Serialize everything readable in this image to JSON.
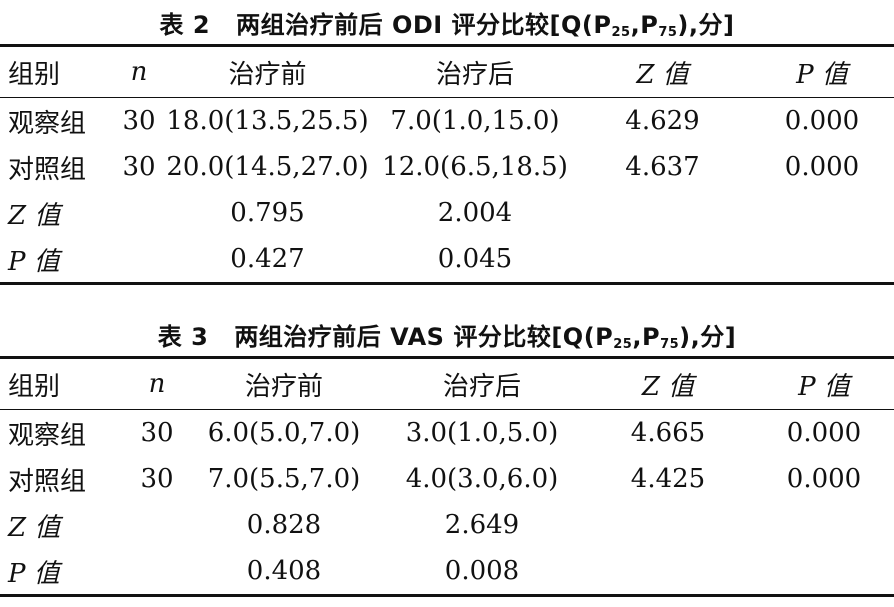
{
  "tables": [
    {
      "caption_no": "表 2",
      "caption_main": "两组治疗前后 ODI 评分比较[Q(P",
      "caption_sub1": "25",
      "caption_mid": ",P",
      "caption_sub2": "75",
      "caption_end": "),分]",
      "headers": {
        "group": "组别",
        "n": "n",
        "before": "治疗前",
        "after": "治疗后",
        "z": "Z 值",
        "p": "P 值"
      },
      "rows": [
        {
          "group": "观察组",
          "n": "30",
          "before": "18.0(13.5,25.5)",
          "after": "7.0(1.0,15.0)",
          "z": "4.629",
          "p": "0.000"
        },
        {
          "group": "对照组",
          "n": "30",
          "before": "20.0(14.5,27.0)",
          "after": "12.0(6.5,18.5)",
          "z": "4.637",
          "p": "0.000"
        },
        {
          "group": "Z 值",
          "n": "",
          "before": "0.795",
          "after": "2.004",
          "z": "",
          "p": ""
        },
        {
          "group": "P 值",
          "n": "",
          "before": "0.427",
          "after": "0.045",
          "z": "",
          "p": ""
        }
      ]
    },
    {
      "caption_no": "表 3",
      "caption_main": "两组治疗前后 VAS 评分比较[Q(P",
      "caption_sub1": "25",
      "caption_mid": ",P",
      "caption_sub2": "75",
      "caption_end": "),分]",
      "headers": {
        "group": "组别",
        "n": "n",
        "before": "治疗前",
        "after": "治疗后",
        "z": "Z 值",
        "p": "P 值"
      },
      "rows": [
        {
          "group": "观察组",
          "n": "30",
          "before": "6.0(5.0,7.0)",
          "after": "3.0(1.0,5.0)",
          "z": "4.665",
          "p": "0.000"
        },
        {
          "group": "对照组",
          "n": "30",
          "before": "7.0(5.5,7.0)",
          "after": "4.0(3.0,6.0)",
          "z": "4.425",
          "p": "0.000"
        },
        {
          "group": "Z 值",
          "n": "",
          "before": "0.828",
          "after": "2.649",
          "z": "",
          "p": ""
        },
        {
          "group": "P 值",
          "n": "",
          "before": "0.408",
          "after": "0.008",
          "z": "",
          "p": ""
        }
      ]
    }
  ]
}
